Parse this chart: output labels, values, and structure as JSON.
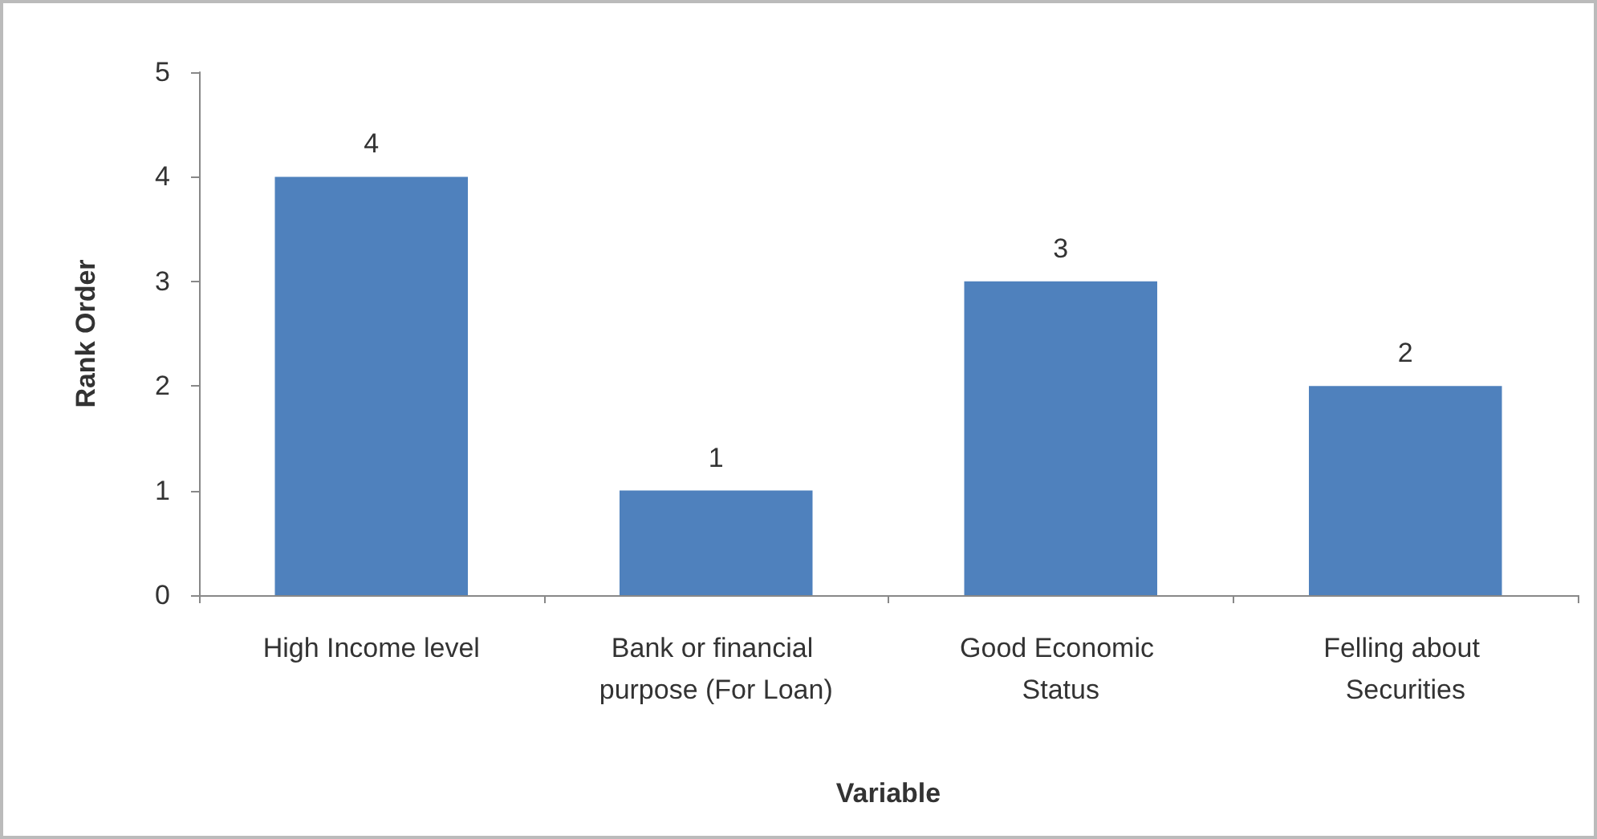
{
  "chart_data": {
    "type": "bar",
    "xlabel": "Variable",
    "ylabel": "Rank Order",
    "categories": [
      "High Income level",
      "Bank or financial purpose (For Loan)",
      "Good Economic Status",
      "Felling about Securities"
    ],
    "values": [
      4,
      1,
      3,
      2
    ],
    "color": "#4f81bd",
    "ylim": [
      0,
      5
    ],
    "yticks": [
      0,
      1,
      2,
      3,
      4,
      5
    ],
    "grid": false,
    "data_labels": true
  }
}
